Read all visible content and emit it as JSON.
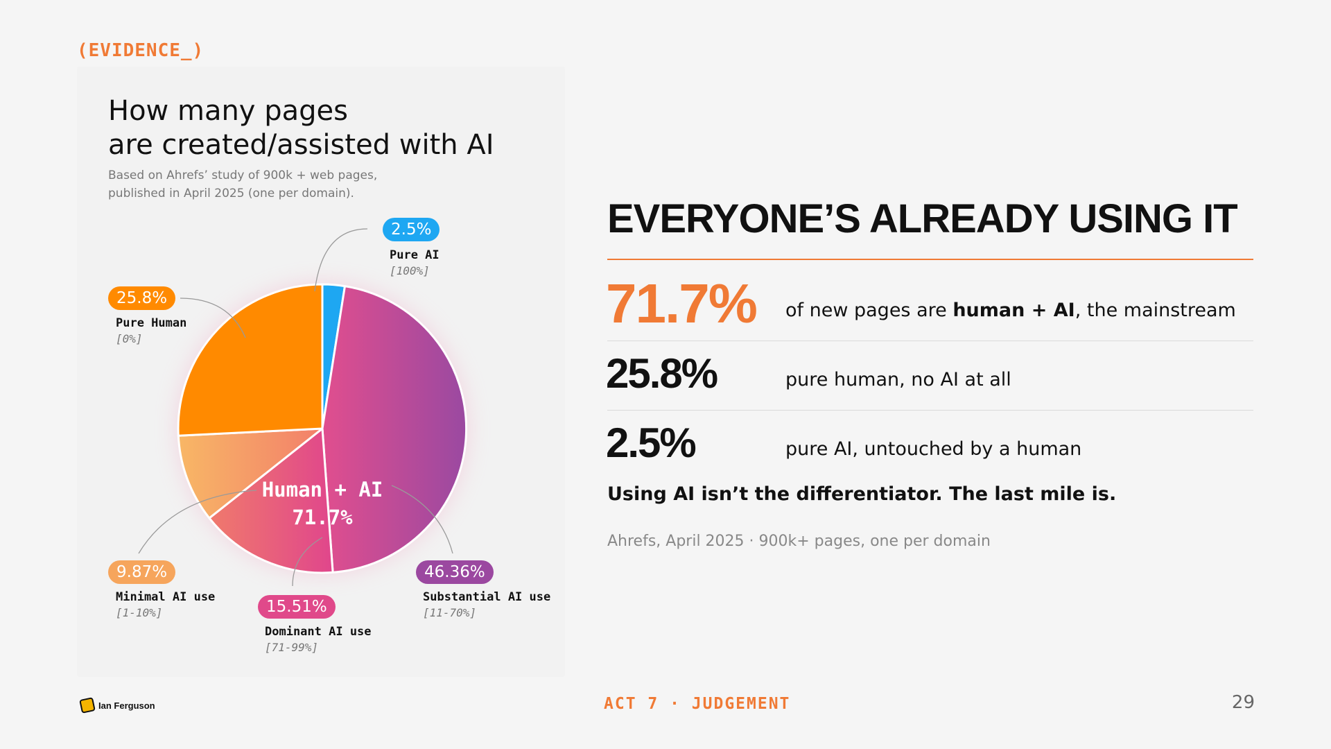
{
  "tag": "(EVIDENCE_)",
  "chart": {
    "title_line1": "How many pages",
    "title_line2": "are created/assisted with AI",
    "subtitle_line1": "Based on Ahrefs’ study of 900k + web pages,",
    "subtitle_line2": "published in April 2025 (one per domain).",
    "center_label": "Human + AI",
    "center_value": "71.7%"
  },
  "chart_data": {
    "type": "pie",
    "slices": [
      {
        "key": "pure_ai",
        "pill": "2.5%",
        "value": 2.5,
        "label": "Pure AI",
        "range": "[100%]",
        "color": "#1ea7f2"
      },
      {
        "key": "substantial",
        "pill": "46.36%",
        "value": 46.36,
        "label": "Substantial AI use",
        "range": "[11-70%]",
        "color": "#9b48a0"
      },
      {
        "key": "dominant",
        "pill": "15.51%",
        "value": 15.51,
        "label": "Dominant AI use",
        "range": "[71-99%]",
        "color": "#e0498a"
      },
      {
        "key": "minimal",
        "pill": "9.87%",
        "value": 9.87,
        "label": "Minimal AI use",
        "range": "[1-10%]",
        "color": "#f6a55c"
      },
      {
        "key": "pure_human",
        "pill": "25.8%",
        "value": 25.8,
        "label": "Pure Human",
        "range": "[0%]",
        "color": "#ff8a00"
      }
    ]
  },
  "headline": "EVERYONE’S ALREADY USING IT",
  "stats": [
    {
      "value": "71.7%",
      "desc_pre": "of new pages are ",
      "desc_bold": "human + AI",
      "desc_post": ", the mainstream"
    },
    {
      "value": "25.8%",
      "desc": "pure human, no AI at all"
    },
    {
      "value": "2.5%",
      "desc": "pure AI, untouched by a human"
    }
  ],
  "takeaway": "Using AI isn’t the differentiator. The last mile is.",
  "source": "Ahrefs, April 2025 · 900k+ pages, one per domain",
  "footer": {
    "author": "Ian Ferguson",
    "act": "ACT 7 · JUDGEMENT",
    "page": "29"
  },
  "colors": {
    "accent": "#f07a35"
  }
}
